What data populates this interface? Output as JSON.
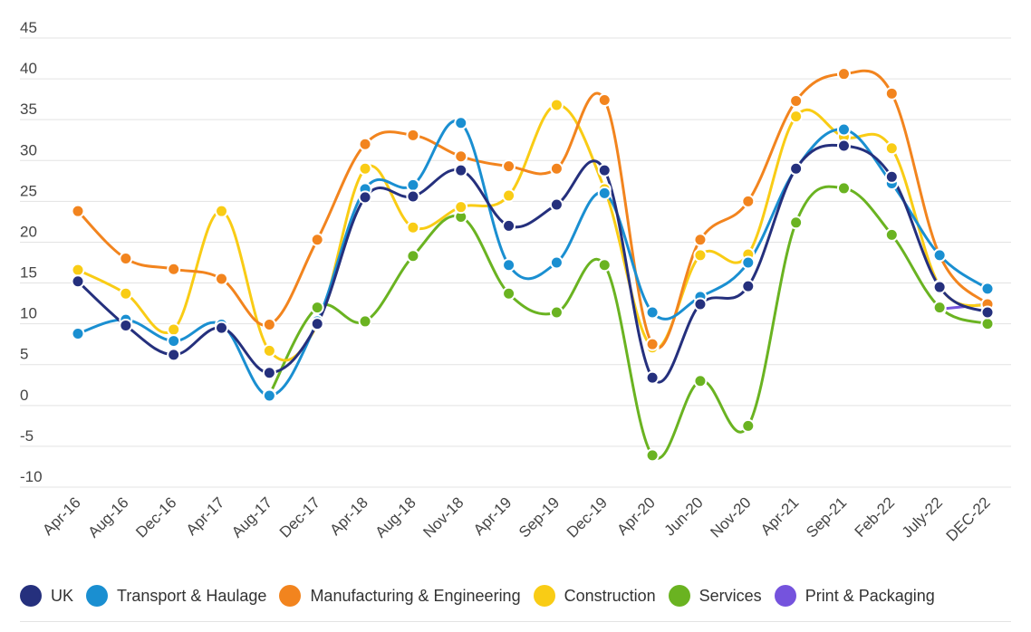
{
  "chart_data": {
    "type": "line",
    "title": "",
    "xlabel": "",
    "ylabel": "",
    "ylim": [
      -10,
      45
    ],
    "yticks": [
      -10,
      -5,
      0,
      5,
      10,
      15,
      20,
      25,
      30,
      35,
      40,
      45
    ],
    "grid": true,
    "legend_position": "bottom",
    "categories": [
      "Apr-16",
      "Aug-16",
      "Dec-16",
      "Apr-17",
      "Aug-17",
      "Dec-17",
      "Apr-18",
      "Aug-18",
      "Nov-18",
      "Apr-19",
      "Sep-19",
      "Dec-19",
      "Apr-20",
      "Jun-20",
      "Nov-20",
      "Apr-21",
      "Sep-21",
      "Feb-22",
      "July-22",
      "DEC-22"
    ],
    "series": [
      {
        "name": "UK",
        "color": "#25307d",
        "values": [
          15.2,
          9.8,
          6.2,
          9.5,
          4.0,
          10.0,
          25.5,
          25.6,
          28.8,
          22.0,
          24.6,
          28.8,
          3.4,
          12.4,
          14.6,
          29.0,
          31.8,
          28.0,
          14.5,
          11.4
        ]
      },
      {
        "name": "Transport & Haulage",
        "color": "#1a8fd1",
        "values": [
          8.8,
          10.5,
          7.9,
          9.9,
          1.2,
          10.3,
          26.5,
          27.0,
          34.6,
          17.2,
          17.5,
          26.0,
          11.4,
          13.3,
          17.5,
          29.0,
          33.8,
          27.2,
          18.4,
          14.3
        ]
      },
      {
        "name": "Manufacturing & Engineering",
        "color": "#f2841e",
        "values": [
          23.8,
          18.0,
          16.7,
          15.5,
          9.9,
          20.3,
          32.0,
          33.1,
          30.5,
          29.3,
          29.0,
          37.4,
          7.5,
          20.3,
          25.0,
          37.3,
          40.6,
          38.2,
          18.4,
          12.4
        ]
      },
      {
        "name": "Construction",
        "color": "#f9cc15",
        "values": [
          16.6,
          13.7,
          9.3,
          23.8,
          6.7,
          9.9,
          29.0,
          21.8,
          24.3,
          25.7,
          36.8,
          26.5,
          7.1,
          18.4,
          18.5,
          35.4,
          32.9,
          31.5,
          14.6,
          12.2
        ]
      },
      {
        "name": "Services",
        "color": "#6ab321",
        "values": [
          null,
          null,
          null,
          null,
          1.3,
          12.0,
          10.3,
          18.3,
          23.1,
          13.7,
          11.4,
          17.2,
          -6.1,
          3.0,
          -2.5,
          22.4,
          26.6,
          20.9,
          12.0,
          10.0
        ]
      },
      {
        "name": "Print & Packaging",
        "color": "#7553dd",
        "values": [
          null,
          null,
          null,
          null,
          null,
          null,
          null,
          null,
          null,
          null,
          null,
          null,
          null,
          null,
          null,
          null,
          null,
          null,
          11.8,
          12.4
        ]
      }
    ]
  }
}
